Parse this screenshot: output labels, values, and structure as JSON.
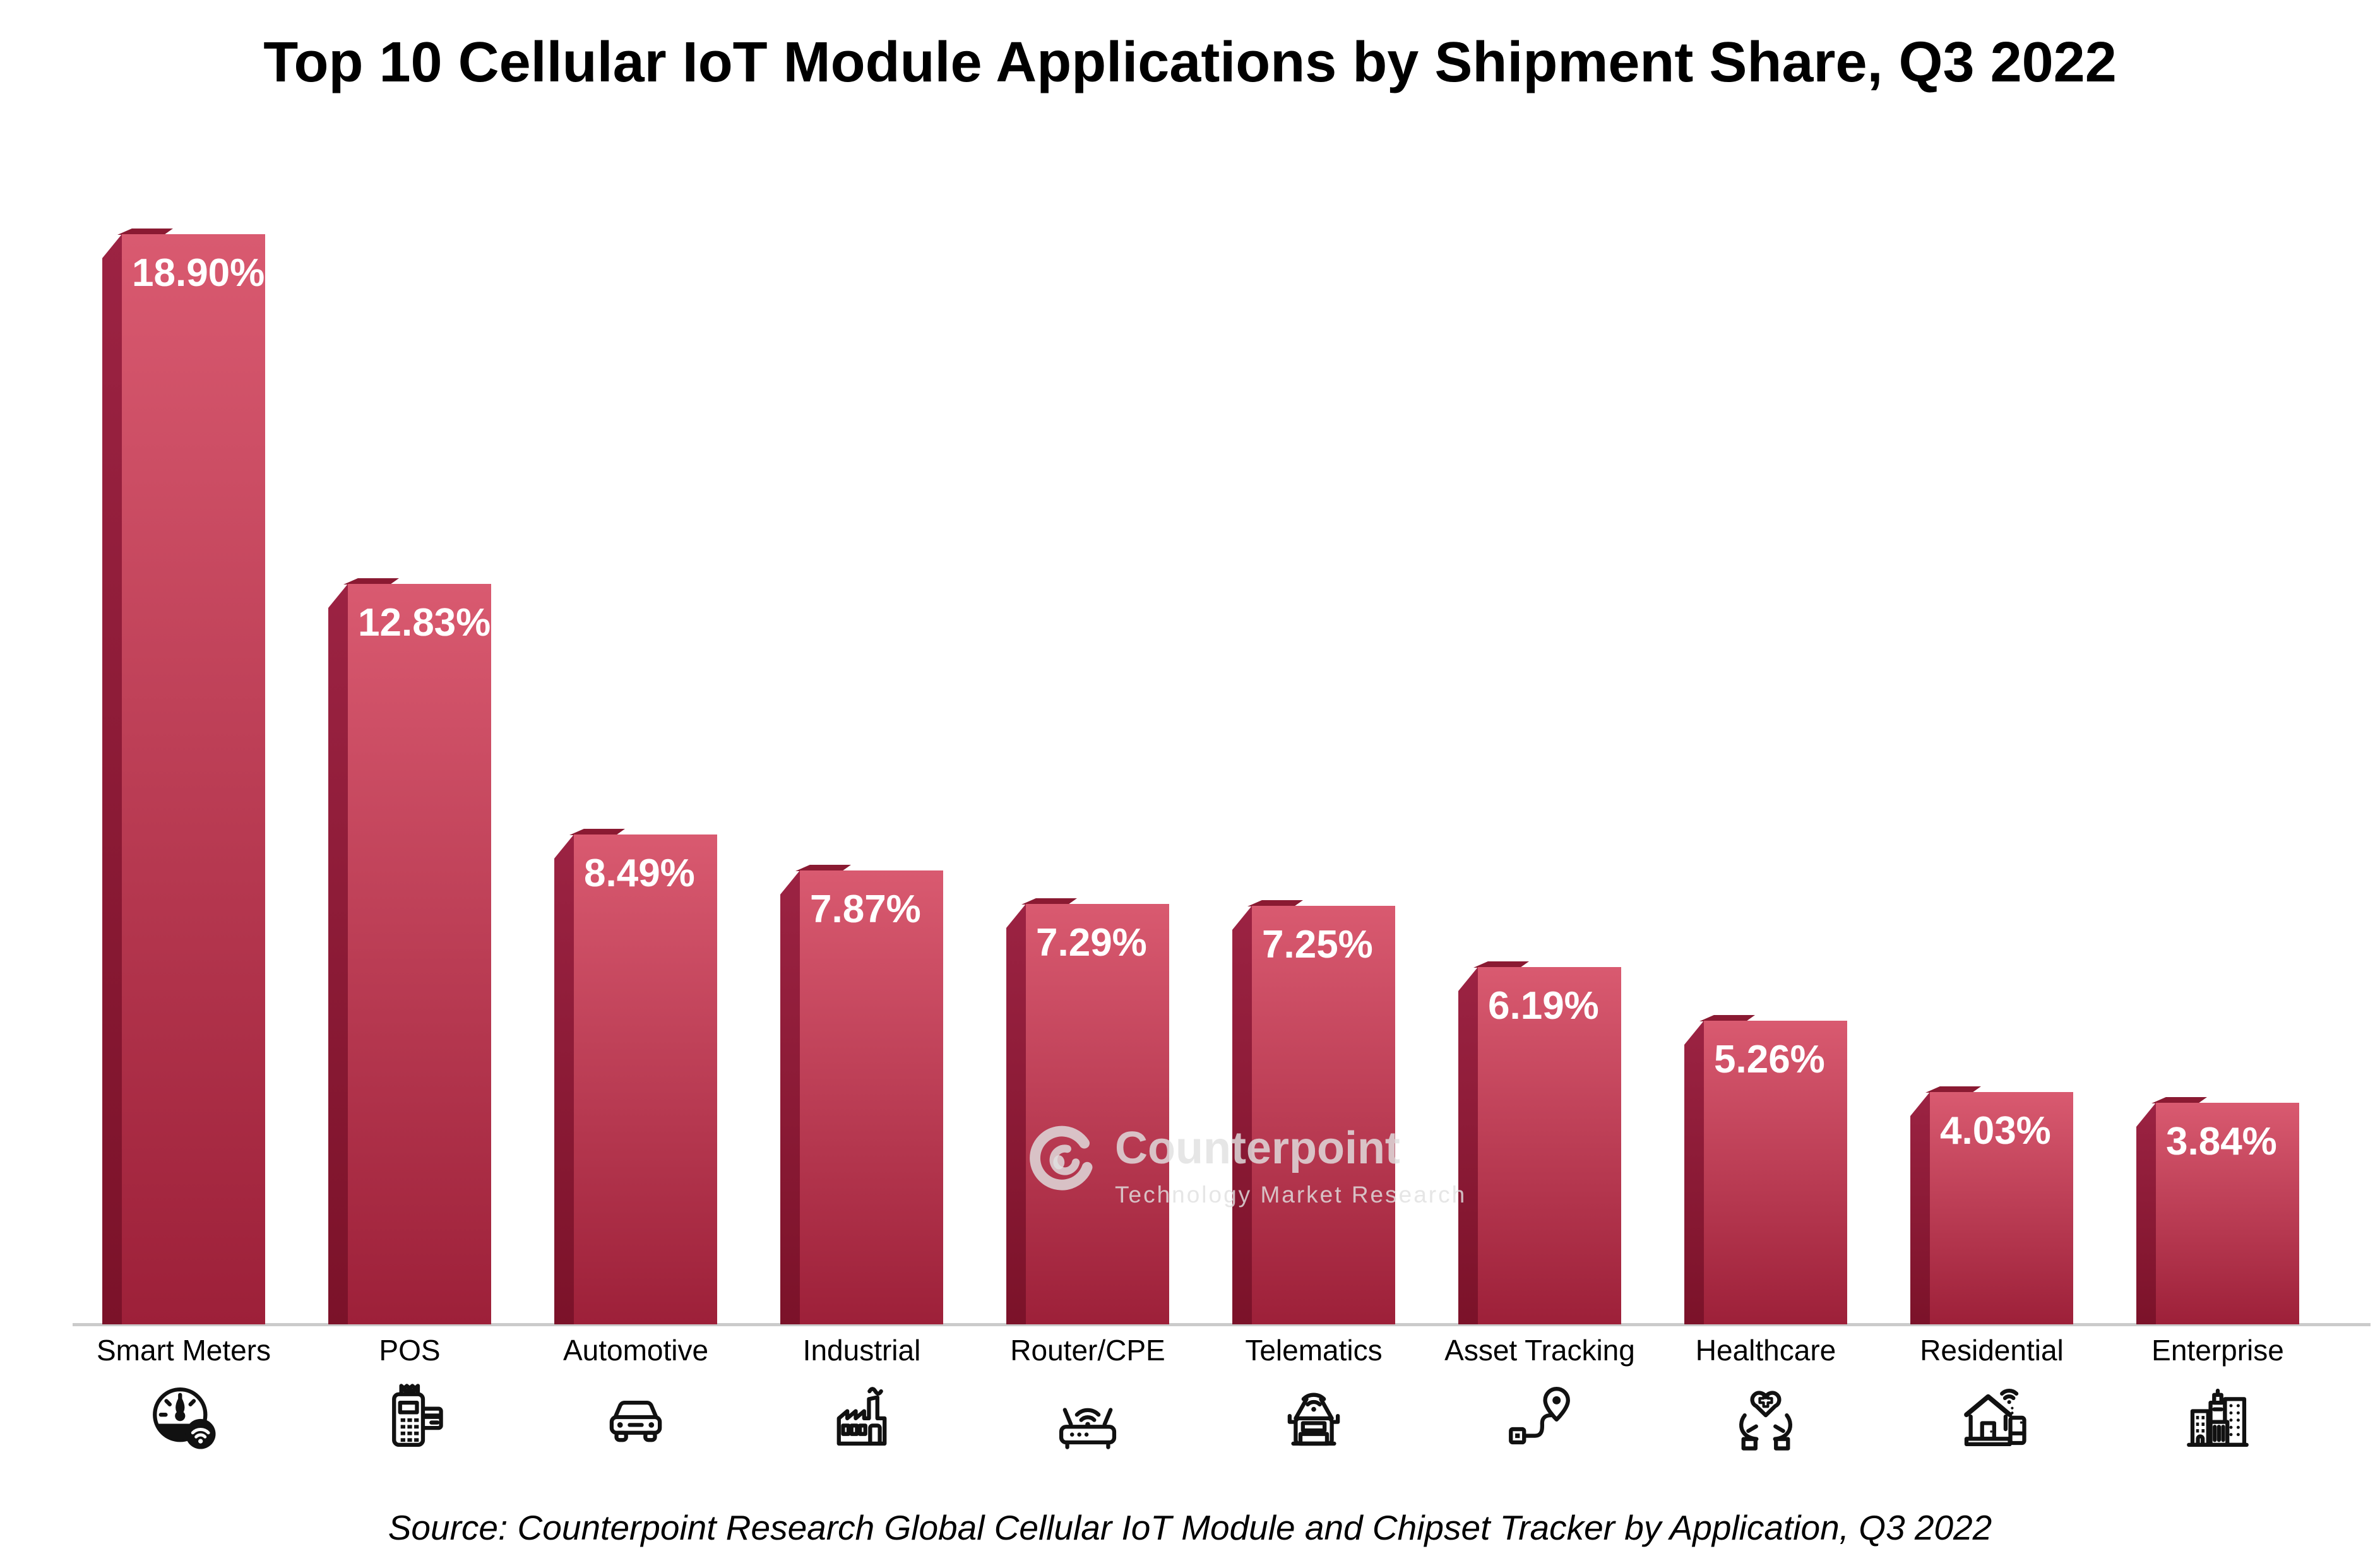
{
  "page": {
    "title": "Top 10 Cellular IoT Module Applications by Shipment Share, Q3 2022",
    "source_note": "Source: Counterpoint Research Global Cellular IoT Module and Chipset Tracker by Application, Q3 2022"
  },
  "watermark": {
    "brand": "Counterpoint",
    "tagline": "Technology Market Research",
    "logo_icon": "counterpoint-swirl-logo-icon"
  },
  "chart_data": {
    "type": "bar",
    "title": "Top 10 Cellular IoT Module Applications by Shipment Share, Q3 2022",
    "categories": [
      "Smart Meters",
      "POS",
      "Automotive",
      "Industrial",
      "Router/CPE",
      "Telematics",
      "Asset Tracking",
      "Healthcare",
      "Residential",
      "Enterprise"
    ],
    "values": [
      18.9,
      12.83,
      8.49,
      7.87,
      7.29,
      7.25,
      6.19,
      5.26,
      4.03,
      3.84
    ],
    "value_labels": [
      "18.90%",
      "12.83%",
      "8.49%",
      "7.87%",
      "7.29%",
      "7.25%",
      "6.19%",
      "5.26%",
      "4.03%",
      "3.84%"
    ],
    "unit": "%",
    "xlabel": "",
    "ylabel": "",
    "ylim": [
      0,
      20
    ],
    "grid": false,
    "legend": "none",
    "y_axis_visible": false,
    "bar_style": "3d-prism",
    "icons": [
      "smart-meter-icon",
      "pos-terminal-icon",
      "car-icon",
      "factory-icon",
      "router-icon",
      "telematics-car-icon",
      "asset-tracking-route-icon",
      "healthcare-hands-heart-icon",
      "smart-home-icon",
      "enterprise-buildings-icon"
    ],
    "colors": {
      "bar_front_top": "#d95a70",
      "bar_front_bottom": "#9d2039",
      "bar_side_top": "#9c2343",
      "bar_side_bottom": "#7b1229",
      "bar_top_face": "#8a1a32",
      "axis_line": "#cbcbcb",
      "value_label_text": "#ffffff",
      "category_text": "#000000",
      "title_text": "#000000"
    }
  }
}
